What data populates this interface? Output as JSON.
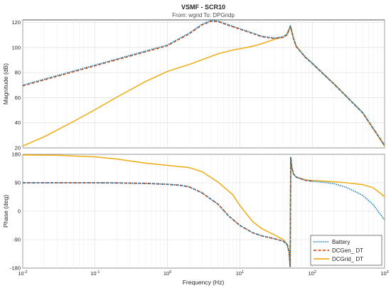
{
  "figure": {
    "title": "VSMF - SCR10",
    "subtitle": "From: wgrid  To: DPGridp",
    "xlabel": "Frequency  (Hz)"
  },
  "chart_data": [
    {
      "type": "line",
      "panel": "magnitude",
      "ylabel": "Magnitude (dB)",
      "xscale": "log",
      "xlim": [
        0.01,
        1000
      ],
      "ylim": [
        20,
        122
      ],
      "x_ticks": [
        0.01,
        0.1,
        1,
        10,
        100,
        1000
      ],
      "y_ticks": [
        20,
        40,
        60,
        80,
        100,
        120
      ],
      "y_tick_labels": [
        "20",
        "40",
        "60",
        "80",
        "100",
        "120"
      ],
      "grid": true,
      "series": [
        {
          "name": "Battery",
          "color": "#0072BD",
          "style": "dotted",
          "x": [
            0.01,
            0.1,
            1,
            2,
            3,
            4,
            5,
            7,
            10,
            15,
            20,
            30,
            40,
            45,
            50,
            55,
            60,
            80,
            100,
            200,
            500,
            1000
          ],
          "y": [
            70,
            86,
            102,
            111.5,
            118.5,
            121.5,
            121,
            118,
            115,
            111.5,
            109,
            107.5,
            108.5,
            110.5,
            117.2,
            107.5,
            101,
            92.5,
            87.5,
            71,
            48,
            22
          ]
        },
        {
          "name": "DCGen_ DT",
          "color": "#D95319",
          "style": "dashed",
          "x": [
            0.01,
            0.1,
            1,
            2,
            3,
            4,
            5,
            7,
            10,
            15,
            20,
            30,
            40,
            45,
            50,
            55,
            60,
            80,
            100,
            200,
            500,
            1000
          ],
          "y": [
            69.5,
            85.5,
            101.5,
            111,
            118,
            121,
            120.7,
            117.7,
            114.7,
            111.2,
            108.7,
            107.2,
            108.2,
            110.2,
            117,
            107.3,
            100.8,
            92.3,
            87.3,
            70.8,
            47.8,
            21.8
          ]
        },
        {
          "name": "DCGrid_ DT",
          "color": "#EDB120",
          "style": "solid",
          "x": [
            0.01,
            0.02,
            0.05,
            0.1,
            0.2,
            0.5,
            1,
            2,
            5,
            8,
            10,
            15,
            20,
            30,
            40,
            45,
            50,
            55,
            60,
            80,
            100,
            200,
            500,
            1000
          ],
          "y": [
            21.5,
            29,
            41,
            50.5,
            60.5,
            73,
            81,
            86.5,
            95,
            98,
            99,
            101,
            103,
            106.5,
            108.5,
            111,
            117.2,
            107.5,
            101,
            92.5,
            87.5,
            71,
            48,
            21.5
          ]
        }
      ]
    },
    {
      "type": "line",
      "panel": "phase",
      "ylabel": "Phase (deg)",
      "xscale": "log",
      "xlim": [
        0.01,
        1000
      ],
      "ylim": [
        -180,
        180
      ],
      "x_ticks": [
        0.01,
        0.1,
        1,
        10,
        100,
        1000
      ],
      "x_tick_labels": [
        "10-2",
        "10-1",
        "100",
        "101",
        "102",
        "103"
      ],
      "y_ticks": [
        -180,
        -90,
        0,
        90,
        180
      ],
      "y_tick_labels": [
        "-180",
        "-90",
        "0",
        "90",
        "180"
      ],
      "grid": true,
      "legend": "bottom-right",
      "series": [
        {
          "name": "Battery",
          "color": "#0072BD",
          "style": "dotted",
          "x": [
            0.01,
            0.1,
            0.2,
            0.5,
            1,
            1.5,
            2,
            3,
            5,
            7,
            10,
            15,
            20,
            30,
            40,
            45,
            48,
            49.5,
            50,
            50.5,
            52,
            55,
            60,
            80,
            100,
            150,
            200,
            300,
            500,
            700,
            1000
          ],
          "y": [
            90,
            90,
            89.5,
            88,
            85,
            82,
            77,
            58,
            22,
            -15,
            -45,
            -68,
            -78,
            -87,
            -95,
            -105,
            -130,
            -175,
            0,
            170,
            140,
            118,
            108,
            98,
            95,
            91,
            87,
            75,
            50,
            20,
            -28
          ]
        },
        {
          "name": "DCGen_ DT",
          "color": "#D95319",
          "style": "dashed",
          "x": [
            0.01,
            0.1,
            0.2,
            0.5,
            1,
            1.5,
            2,
            3,
            5,
            7,
            10,
            15,
            20,
            30,
            40,
            45,
            48,
            49.5,
            50,
            50.5,
            52,
            55,
            60,
            80,
            100
          ],
          "y": [
            90,
            90,
            89.5,
            88,
            85,
            82,
            77,
            58,
            22,
            -15,
            -45,
            -68,
            -78,
            -87,
            -95,
            -105,
            -130,
            -175,
            0,
            170,
            140,
            118,
            108,
            98,
            95
          ]
        },
        {
          "name": "DCGrid_ DT",
          "color": "#EDB120",
          "style": "solid",
          "x": [
            0.01,
            0.03,
            0.1,
            0.2,
            0.5,
            1,
            2,
            3,
            5,
            8,
            10,
            15,
            20,
            30,
            40,
            45,
            48,
            49.5,
            50,
            50.5,
            52,
            55,
            60,
            80,
            100,
            150,
            200,
            300,
            500,
            700,
            1000
          ],
          "y": [
            178,
            177,
            172,
            165,
            152,
            145,
            138,
            125,
            92,
            52,
            18,
            -33,
            -55,
            -75,
            -90,
            -105,
            -130,
            -175,
            0,
            170,
            140,
            118,
            108,
            99,
            97,
            95,
            93,
            90,
            84,
            74,
            46
          ]
        }
      ]
    }
  ]
}
